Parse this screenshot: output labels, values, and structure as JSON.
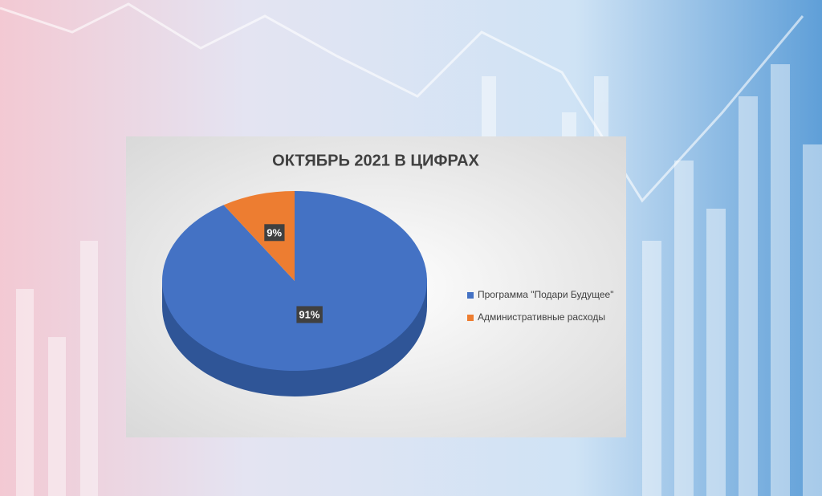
{
  "chart_data": {
    "type": "pie",
    "title": "ОКТЯБРЬ 2021 В ЦИФРАХ",
    "categories": [
      "Программа \"Подари Будущее\"",
      "Административные расходы"
    ],
    "values": [
      91,
      9
    ],
    "value_labels": [
      "91%",
      "9%"
    ],
    "colors": [
      "#4472c4",
      "#ed7d31"
    ],
    "legend": "right"
  }
}
